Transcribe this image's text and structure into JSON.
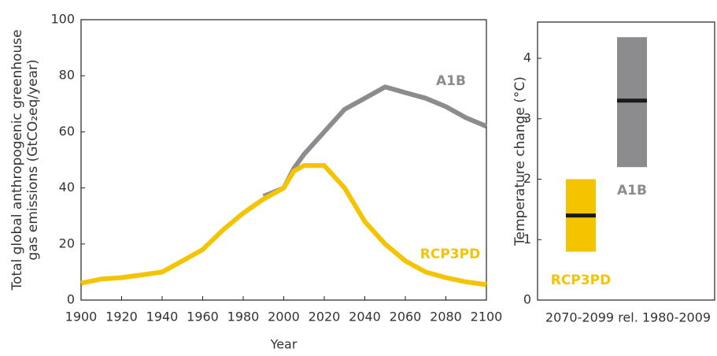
{
  "chart_data": [
    {
      "type": "line",
      "ylabel": [
        "Total global anthropogenic greenhouse",
        "gas emissions (GtCO₂eq/year)"
      ],
      "xlabel": "Year",
      "x": [
        1900,
        1910,
        1920,
        1930,
        1940,
        1950,
        1960,
        1970,
        1980,
        1990,
        2000,
        2005,
        2010,
        2020,
        2030,
        2040,
        2050,
        2060,
        2070,
        2080,
        2090,
        2100
      ],
      "series": [
        {
          "name": "A1B",
          "color": "#8c8c8e",
          "values": [
            null,
            null,
            null,
            null,
            null,
            null,
            null,
            null,
            null,
            37,
            40,
            47,
            52,
            60,
            68,
            72,
            76,
            74,
            72,
            69,
            65,
            62
          ]
        },
        {
          "name": "RCP3PD",
          "color": "#f5c400",
          "values": [
            6,
            7.5,
            8,
            9,
            10,
            14,
            18,
            25,
            31,
            36,
            40,
            46,
            48,
            48,
            40,
            28,
            20,
            14,
            10,
            8,
            6.5,
            5.5
          ]
        }
      ],
      "xlim": [
        1900,
        2100
      ],
      "xticks": [
        1900,
        1920,
        1940,
        1960,
        1980,
        2000,
        2020,
        2040,
        2060,
        2080,
        2100
      ],
      "ylim": [
        0,
        100
      ],
      "yticks": [
        0,
        20,
        40,
        60,
        80,
        100
      ]
    },
    {
      "type": "range",
      "ylabel": "Temperature change (°C)",
      "xlabel": "2070-2099 rel. 1980-2009",
      "categories": [
        "RCP3PD",
        "A1B"
      ],
      "colors": [
        "#f5c400",
        "#8c8c8e"
      ],
      "low": [
        0.8,
        2.2
      ],
      "high": [
        2.0,
        4.35
      ],
      "median": [
        1.4,
        3.3
      ],
      "ylim": [
        0,
        4.6
      ],
      "yticks": [
        0,
        1,
        2,
        3,
        4
      ]
    }
  ]
}
